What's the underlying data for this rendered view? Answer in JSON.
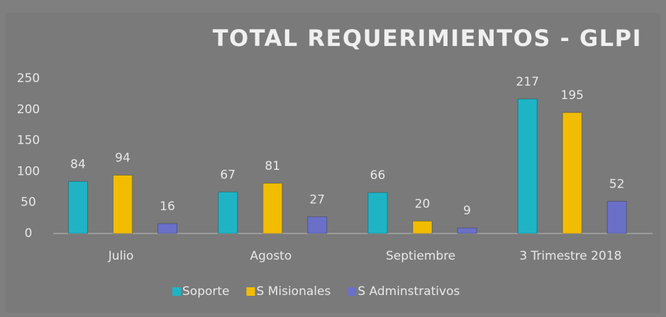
{
  "chart_data": {
    "type": "bar",
    "title": "TOTAL REQUERIMIENTOS - GLPI",
    "categories": [
      "Julio",
      "Agosto",
      "Septiembre",
      "3 Trimestre 2018"
    ],
    "series": [
      {
        "name": "Soporte",
        "color": "#1eb4c6",
        "values": [
          84,
          67,
          66,
          217
        ]
      },
      {
        "name": "S Misionales",
        "color": "#f2bd00",
        "values": [
          94,
          81,
          20,
          195
        ]
      },
      {
        "name": "S Adminstrativos",
        "color": "#6a70c8",
        "values": [
          16,
          27,
          9,
          52
        ]
      }
    ],
    "ylim": [
      0,
      250
    ],
    "yticks": [
      0,
      50,
      100,
      150,
      200,
      250
    ],
    "grid": false,
    "legend": "bottom"
  }
}
